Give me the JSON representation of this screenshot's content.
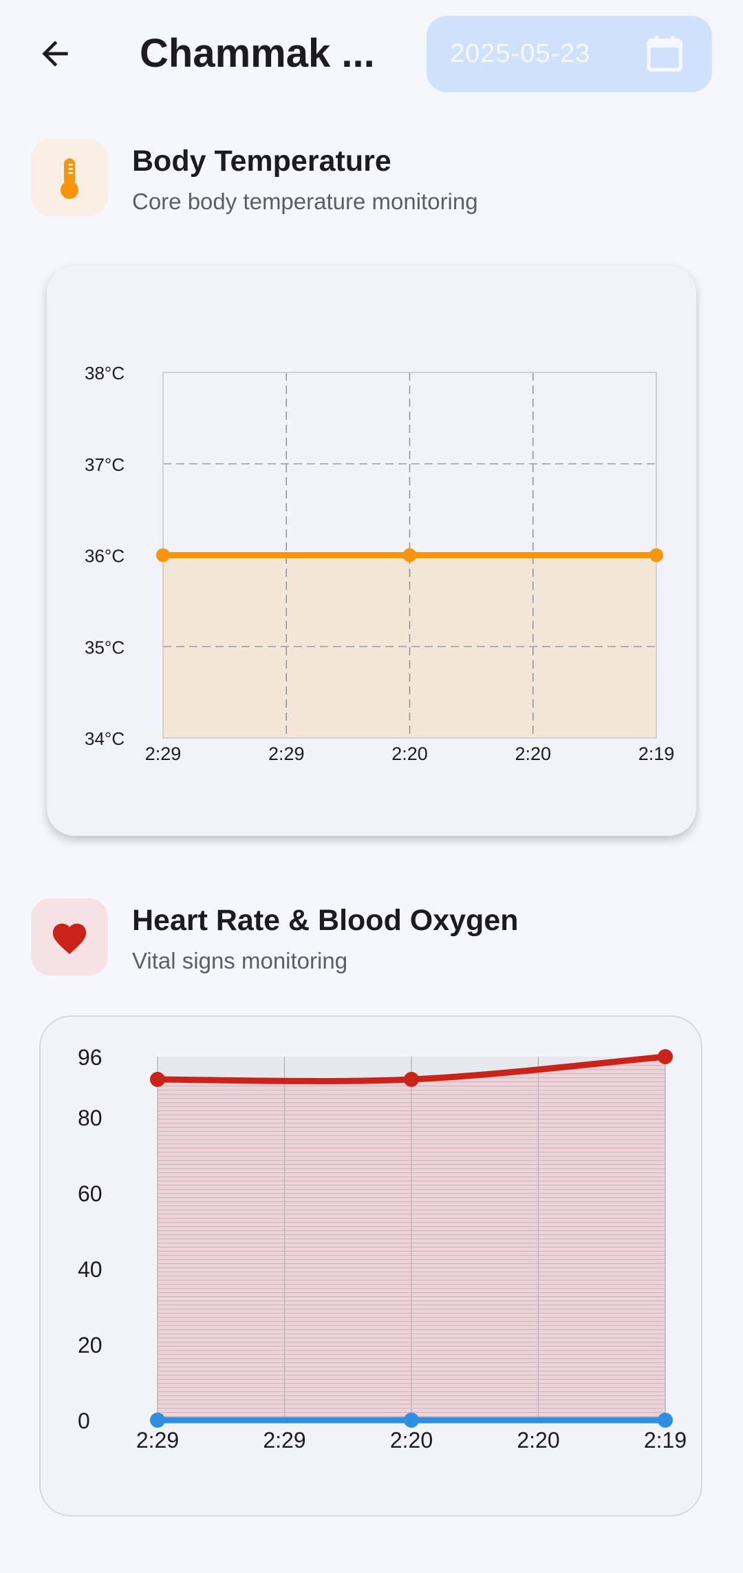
{
  "header": {
    "title": "Chammak ...",
    "date": "2025-05-23",
    "back_icon": "arrow-back-icon",
    "calendar_icon": "calendar-icon"
  },
  "sections": [
    {
      "title": "Body Temperature",
      "subtitle": "Core body temperature monitoring",
      "icon": "thermometer-icon",
      "icon_color": "#f7960c",
      "icon_bg": "#f9efe4"
    },
    {
      "title": "Heart Rate & Blood Oxygen",
      "subtitle": "Vital signs monitoring",
      "icon": "heart-icon",
      "icon_color": "#c9231a",
      "icon_bg": "#f6e2e4"
    }
  ],
  "chart_data": [
    {
      "type": "area",
      "categories": [
        "2:29",
        "2:29",
        "2:20",
        "2:20",
        "2:19"
      ],
      "ytick_labels": [
        "34°C",
        "35°C",
        "36°C",
        "37°C",
        "38°C"
      ],
      "ylim": [
        34,
        38
      ],
      "grid": true,
      "series": [
        {
          "points": [
            [
              0,
              36
            ],
            [
              2,
              36
            ],
            [
              4,
              36
            ]
          ],
          "color": "#f7960c",
          "fill": "#f3e6d6"
        }
      ]
    },
    {
      "type": "line",
      "categories": [
        "2:29",
        "2:29",
        "2:20",
        "2:20",
        "2:19"
      ],
      "ytick_labels": [
        "0",
        "20",
        "40",
        "60",
        "80",
        "96"
      ],
      "yticks": [
        0,
        20,
        40,
        60,
        80,
        96
      ],
      "ylim": [
        0,
        96
      ],
      "grid": true,
      "series": [
        {
          "points": [
            [
              0,
              90
            ],
            [
              2,
              90
            ],
            [
              4,
              96
            ]
          ],
          "color": "#c9231a",
          "fill": "#e8c7cc"
        },
        {
          "points": [
            [
              0,
              0
            ],
            [
              2,
              0
            ],
            [
              4,
              0
            ]
          ],
          "color": "#2f8fe0"
        }
      ]
    }
  ]
}
